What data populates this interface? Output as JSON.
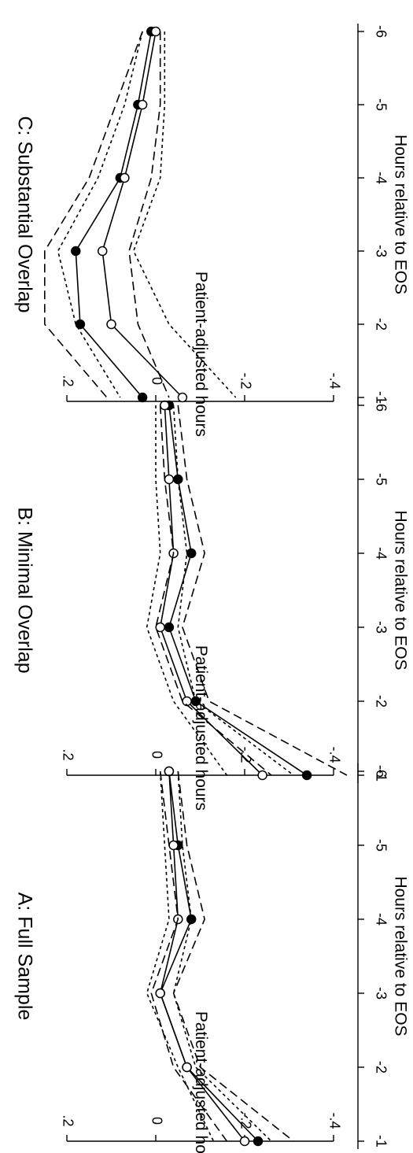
{
  "chart_data": [
    {
      "type": "line",
      "title": "A: Full Sample",
      "xlabel": "Hours relative to EOS",
      "ylabel": "Patient-adjusted hours",
      "x": [
        -6,
        -5,
        -4,
        -3,
        -2,
        -1
      ],
      "x_tick_labels": [
        "-6",
        "-5",
        "-4",
        "-3",
        "-2",
        "-1"
      ],
      "y_ticks": [
        -0.4,
        -0.2,
        0,
        0.2
      ],
      "y_tick_labels": [
        "-.4",
        "-.2",
        "0",
        ".2"
      ],
      "ylim": [
        -0.45,
        0.25
      ],
      "series": [
        {
          "marker": "filled-circle",
          "line": "solid",
          "values": [
            -0.03,
            -0.05,
            -0.08,
            -0.01,
            -0.07,
            -0.23
          ]
        },
        {
          "marker": "hollow-circle",
          "line": "solid",
          "values": [
            -0.03,
            -0.04,
            -0.05,
            -0.01,
            -0.07,
            -0.2
          ]
        },
        {
          "marker": "none",
          "line": "long-dash",
          "values": [
            -0.05,
            -0.07,
            -0.11,
            -0.04,
            -0.1,
            -0.31
          ]
        },
        {
          "marker": "none",
          "line": "long-dash",
          "values": [
            -0.01,
            -0.03,
            -0.05,
            0.01,
            -0.04,
            -0.16
          ]
        },
        {
          "marker": "none",
          "line": "short-dash",
          "values": [
            -0.05,
            -0.06,
            -0.08,
            -0.04,
            -0.09,
            -0.26
          ]
        },
        {
          "marker": "none",
          "line": "short-dash",
          "values": [
            -0.01,
            -0.02,
            -0.03,
            0.02,
            -0.05,
            -0.13
          ]
        }
      ]
    },
    {
      "type": "line",
      "title": "B: Minimal Overlap",
      "xlabel": "Hours relative to EOS",
      "ylabel": "Patient-adjusted hours",
      "x": [
        -6,
        -5,
        -4,
        -3,
        -2,
        -1
      ],
      "x_tick_labels": [
        "-6",
        "-5",
        "-4",
        "-3",
        "-2",
        "-1"
      ],
      "y_ticks": [
        -0.4,
        -0.2,
        0,
        0.2
      ],
      "y_tick_labels": [
        "-.4",
        "-.2",
        "0",
        ".2"
      ],
      "ylim": [
        -0.45,
        0.25
      ],
      "series": [
        {
          "marker": "filled-circle",
          "line": "solid",
          "values": [
            -0.03,
            -0.05,
            -0.08,
            -0.03,
            -0.09,
            -0.34
          ]
        },
        {
          "marker": "hollow-circle",
          "line": "solid",
          "values": [
            -0.02,
            -0.03,
            -0.04,
            -0.01,
            -0.07,
            -0.24
          ]
        },
        {
          "marker": "none",
          "line": "long-dash",
          "values": [
            -0.05,
            -0.07,
            -0.11,
            -0.06,
            -0.12,
            -0.43
          ]
        },
        {
          "marker": "none",
          "line": "long-dash",
          "values": [
            -0.01,
            -0.02,
            -0.04,
            0.0,
            -0.06,
            -0.26
          ]
        },
        {
          "marker": "none",
          "line": "short-dash",
          "values": [
            -0.04,
            -0.05,
            -0.07,
            -0.05,
            -0.09,
            -0.31
          ]
        },
        {
          "marker": "none",
          "line": "short-dash",
          "values": [
            0.0,
            0.0,
            -0.01,
            0.02,
            -0.04,
            -0.16
          ]
        }
      ]
    },
    {
      "type": "line",
      "title": "C: Substantial Overlap",
      "xlabel": "Hours relative to EOS",
      "ylabel": "Patient-adjusted hours",
      "x": [
        -6,
        -5,
        -4,
        -3,
        -2,
        -1
      ],
      "x_tick_labels": [
        "-6",
        "-5",
        "-4",
        "-3",
        "-2",
        "-1"
      ],
      "y_ticks": [
        -0.4,
        -0.2,
        0,
        0.2
      ],
      "y_tick_labels": [
        "-.4",
        "-.2",
        "0",
        ".2"
      ],
      "ylim": [
        -0.45,
        0.25
      ],
      "series": [
        {
          "marker": "filled-circle",
          "line": "solid",
          "values": [
            0.01,
            0.04,
            0.08,
            0.18,
            0.17,
            0.03
          ]
        },
        {
          "marker": "hollow-circle",
          "line": "solid",
          "values": [
            0.0,
            0.03,
            0.07,
            0.12,
            0.1,
            -0.06
          ]
        },
        {
          "marker": "none",
          "line": "long-dash",
          "values": [
            0.03,
            0.09,
            0.15,
            0.25,
            0.25,
            0.11
          ]
        },
        {
          "marker": "none",
          "line": "long-dash",
          "values": [
            -0.01,
            -0.01,
            0.01,
            0.06,
            0.04,
            -0.03
          ]
        },
        {
          "marker": "none",
          "line": "short-dash",
          "values": [
            0.03,
            0.07,
            0.13,
            0.22,
            0.18,
            0.08
          ]
        },
        {
          "marker": "none",
          "line": "short-dash",
          "values": [
            -0.02,
            -0.02,
            -0.01,
            0.05,
            -0.03,
            -0.18
          ]
        }
      ]
    }
  ]
}
